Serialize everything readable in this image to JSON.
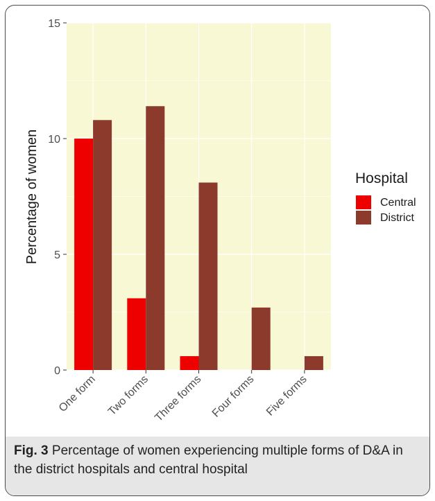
{
  "chart_data": {
    "type": "bar",
    "title": "",
    "xlabel": "",
    "ylabel": "Percentage of women",
    "ylim": [
      0,
      15
    ],
    "yticks": [
      0,
      5,
      10,
      15
    ],
    "categories": [
      "One form",
      "Two forms",
      "Three forms",
      "Four forms",
      "Five forms"
    ],
    "series": [
      {
        "name": "Central",
        "color": "#ee0000",
        "values": [
          10.0,
          3.1,
          0.6,
          0,
          0
        ]
      },
      {
        "name": "District",
        "color": "#8b3a2b",
        "values": [
          10.8,
          11.4,
          8.1,
          2.7,
          0.6
        ]
      }
    ],
    "legend": {
      "title": "Hospital",
      "placement": "right"
    },
    "panel_background": "#f8f8d4",
    "grid": true
  },
  "caption": {
    "label": "Fig. 3",
    "text": " Percentage of women experiencing multiple forms of D&A in the district hospitals and central hospital"
  }
}
